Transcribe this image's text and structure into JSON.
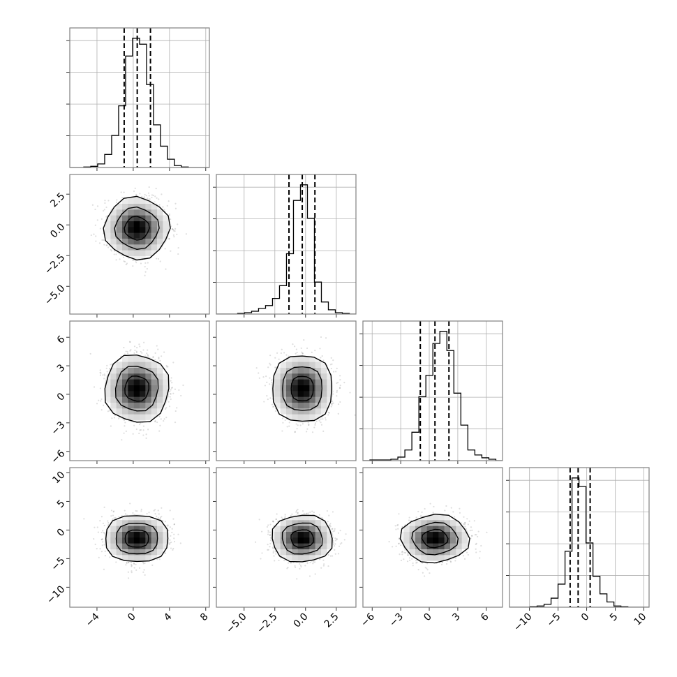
{
  "chart_data": {
    "type": "corner",
    "title": "",
    "grid": true,
    "parameters": [
      {
        "index": 0,
        "range": [
          -7.0,
          8.4
        ],
        "ticks": [
          -4,
          0,
          4,
          8
        ],
        "tick_labels": [
          "−4",
          "0",
          "4",
          "8"
        ],
        "mean": 0.4,
        "sigma": 1.5,
        "quantiles": [
          -1.0,
          0.44,
          1.9
        ],
        "hist": {
          "lo": -5.46,
          "hi": 6.08,
          "counts": [
            2,
            5,
            15,
            55,
            135,
            260,
            470,
            545,
            520,
            350,
            180,
            90,
            35,
            8,
            2
          ]
        }
      },
      {
        "index": 1,
        "range": [
          -7.26,
          4.1
        ],
        "ticks": [
          -5.0,
          -2.5,
          0.0,
          2.5
        ],
        "tick_labels": [
          "−5.0",
          "−2.5",
          "0.0",
          "2.5"
        ],
        "mean": -0.27,
        "sigma": 1.05,
        "quantiles": [
          -1.35,
          -0.27,
          0.76
        ],
        "hist": {
          "lo": -5.53,
          "hi": 3.56,
          "counts": [
            1,
            2,
            4,
            8,
            12,
            22,
            40,
            85,
            160,
            182,
            135,
            45,
            17,
            6,
            2,
            1
          ]
        }
      },
      {
        "index": 2,
        "range": [
          -6.97,
          7.7
        ],
        "ticks": [
          -6,
          -3,
          0,
          3,
          6
        ],
        "tick_labels": [
          "−6",
          "−3",
          "0",
          "3",
          "6"
        ],
        "mean": 0.6,
        "sigma": 1.5,
        "quantiles": [
          -0.94,
          0.6,
          2.07
        ],
        "hist": {
          "lo": -6.24,
          "hi": 7.0,
          "counts": [
            1,
            1,
            1,
            2,
            5,
            15,
            40,
            90,
            120,
            165,
            182,
            155,
            95,
            50,
            15,
            8,
            4,
            2
          ]
        }
      },
      {
        "index": 3,
        "range": [
          -13.5,
          10.9
        ],
        "ticks": [
          -10,
          -5,
          0,
          5,
          10
        ],
        "tick_labels": [
          "−10",
          "−5",
          "0",
          "5",
          "10"
        ],
        "mean": -1.5,
        "sigma": 1.75,
        "quantiles": [
          -2.9,
          -1.5,
          0.6
        ],
        "hist": {
          "lo": -9.9,
          "hi": 7.2,
          "counts": [
            2,
            5,
            12,
            38,
            97,
            235,
            543,
            507,
            270,
            130,
            56,
            22,
            5,
            2
          ]
        }
      }
    ],
    "contour_levels_sigma": [
      0.9,
      1.6,
      2.4
    ],
    "samples_per_panel": 1800,
    "colors": {
      "line": "#000000",
      "grid": "#b0b0b0",
      "frame": "#808080",
      "points": "#000000"
    }
  }
}
